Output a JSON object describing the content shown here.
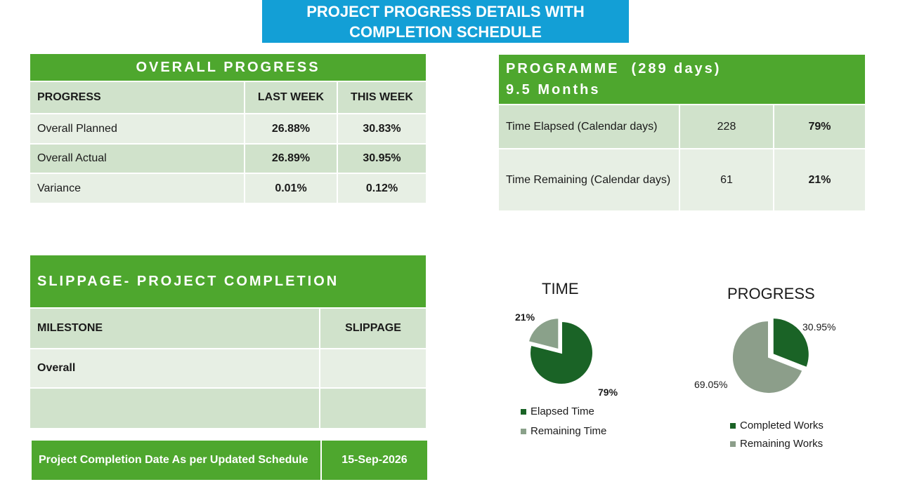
{
  "title": {
    "line1": "PROJECT PROGRESS DETAILS WITH",
    "line2": "COMPLETION SCHEDULE"
  },
  "overall_progress": {
    "header": "OVERALL PROGRESS",
    "columns": [
      "PROGRESS",
      "LAST WEEK",
      "THIS WEEK"
    ],
    "rows": [
      {
        "label": "Overall Planned",
        "last": "26.88%",
        "this": "30.83%"
      },
      {
        "label": "Overall Actual",
        "last": "26.89%",
        "this": "30.95%"
      },
      {
        "label": "Variance",
        "last": "0.01%",
        "this": "0.12%"
      }
    ]
  },
  "programme": {
    "header_line1": "PROGRAMME  (289 days)",
    "header_line2": "9.5 Months",
    "rows": [
      {
        "label": "Time Elapsed (Calendar days)",
        "days": "228",
        "pct": "79%"
      },
      {
        "label": "Time Remaining (Calendar days)",
        "days": "61",
        "pct": "21%"
      }
    ]
  },
  "slippage": {
    "header": "SLIPPAGE- PROJECT COMPLETION",
    "columns": [
      "MILESTONE",
      "SLIPPAGE"
    ],
    "rows": [
      {
        "milestone": "Overall",
        "slippage": ""
      },
      {
        "milestone": "",
        "slippage": ""
      }
    ]
  },
  "completion": {
    "label": "Project Completion Date As per Updated Schedule",
    "date": "15-Sep-2026"
  },
  "colors": {
    "dark_green": "#1a6326",
    "grey_green": "#8aa18a",
    "light_grey_green": "#8c9e8a"
  },
  "chart_data": [
    {
      "type": "pie",
      "title": "TIME",
      "categories": [
        "Elapsed Time",
        "Remaining Time"
      ],
      "values": [
        79,
        21
      ],
      "labels": [
        "79%",
        "21%"
      ],
      "colors": [
        "#1a6326",
        "#8aa18a"
      ],
      "legend": "bottom"
    },
    {
      "type": "pie",
      "title": "PROGRESS",
      "categories": [
        "Completed Works",
        "Remaining Works"
      ],
      "values": [
        30.95,
        69.05
      ],
      "labels": [
        "30.95%",
        "69.05%"
      ],
      "colors": [
        "#1a6326",
        "#8c9e8a"
      ],
      "legend": "bottom"
    }
  ]
}
